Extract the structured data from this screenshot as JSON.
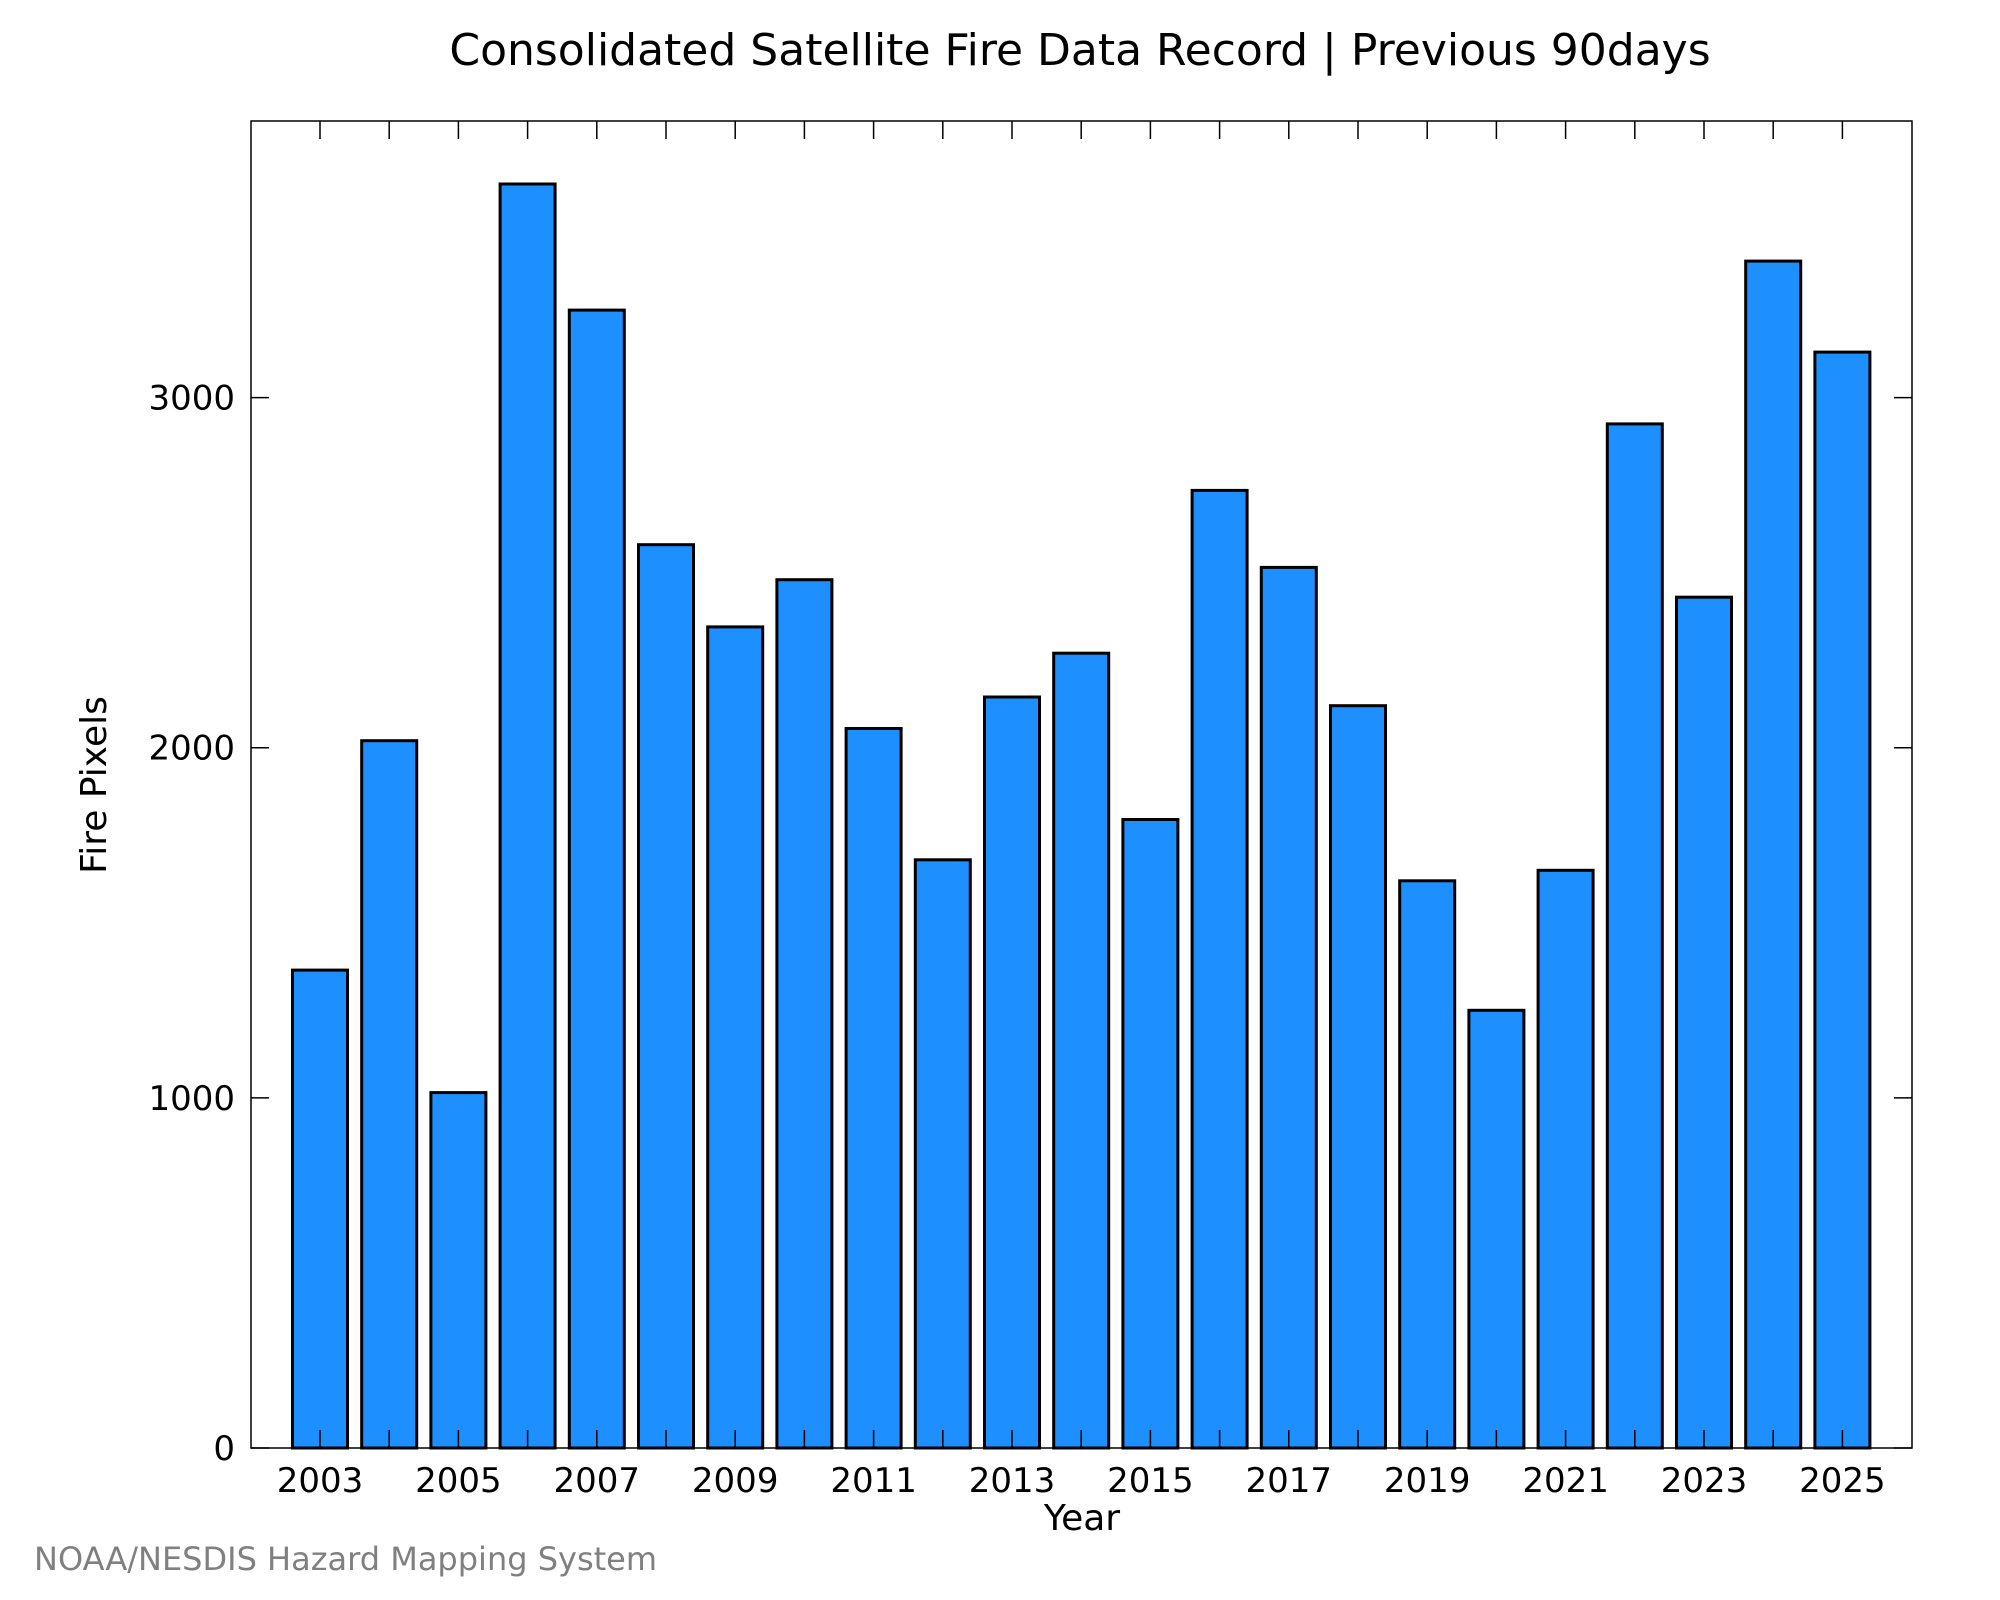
{
  "chart_data": {
    "type": "bar",
    "title": "Consolidated Satellite Fire Data Record | Previous 90days",
    "xlabel": "Year",
    "ylabel": "Fire Pixels",
    "categories": [
      "2003",
      "2004",
      "2005",
      "2006",
      "2007",
      "2008",
      "2009",
      "2010",
      "2011",
      "2012",
      "2013",
      "2014",
      "2015",
      "2016",
      "2017",
      "2018",
      "2019",
      "2020",
      "2021",
      "2022",
      "2023",
      "2024",
      "2025"
    ],
    "values": [
      1365,
      2020,
      1015,
      3610,
      3250,
      2580,
      2345,
      2480,
      2055,
      1680,
      2145,
      2270,
      1795,
      2735,
      2515,
      2120,
      1620,
      1250,
      1650,
      2925,
      2430,
      3390,
      3130
    ],
    "x_tick_labels": [
      "2003",
      "2005",
      "2007",
      "2009",
      "2011",
      "2013",
      "2015",
      "2017",
      "2019",
      "2021",
      "2023",
      "2025"
    ],
    "y_ticks": [
      0,
      1000,
      2000,
      3000
    ],
    "y_tick_labels": [
      "0",
      "1000",
      "2000",
      "3000"
    ],
    "ylim": [
      0,
      3790
    ],
    "grid": false,
    "legend": "none",
    "bar_color": "#1e8fff",
    "bar_edge_color": "#000000"
  },
  "footer": {
    "credit": "NOAA/NESDIS Hazard Mapping System"
  }
}
